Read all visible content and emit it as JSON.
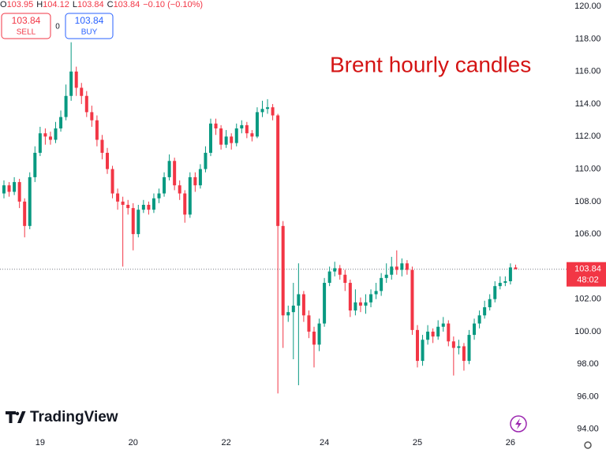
{
  "chart_data": {
    "type": "candlestick",
    "header": {
      "items": [
        {
          "label": "O",
          "value": "103.95"
        },
        {
          "label": "H",
          "value": "104.12"
        },
        {
          "label": "L",
          "value": "103.84"
        },
        {
          "label": "C",
          "value": "103.84"
        }
      ],
      "change": "−0.10 (−0.10%)"
    },
    "trade": {
      "sell_price": "103.84",
      "sell_label": "SELL",
      "spread": "0",
      "buy_price": "103.84",
      "buy_label": "BUY"
    },
    "annotation": "Brent hourly candles",
    "brand": "TradingView",
    "last_price_label": "103.84",
    "countdown": "48:02",
    "up_color": "#089981",
    "down_color": "#f23645",
    "categories": [
      null,
      null,
      null,
      null,
      null,
      null,
      null,
      "19",
      null,
      null,
      null,
      null,
      null,
      null,
      null,
      null,
      null,
      null,
      null,
      null,
      null,
      null,
      null,
      null,
      null,
      "20",
      null,
      null,
      null,
      null,
      null,
      null,
      null,
      null,
      null,
      null,
      null,
      null,
      null,
      null,
      null,
      null,
      null,
      "22",
      null,
      null,
      null,
      null,
      null,
      null,
      null,
      null,
      null,
      null,
      null,
      null,
      null,
      null,
      null,
      null,
      null,
      null,
      "24",
      null,
      null,
      null,
      null,
      null,
      null,
      null,
      null,
      null,
      null,
      null,
      null,
      null,
      null,
      null,
      null,
      null,
      "25",
      null,
      null,
      null,
      null,
      null,
      null,
      null,
      null,
      null,
      null,
      null,
      null,
      null,
      null,
      null,
      null,
      null,
      "26",
      null
    ],
    "open": [
      108.5,
      109,
      108.6,
      109.2,
      108,
      106.5,
      109.5,
      111,
      112.2,
      112,
      111.8,
      112.5,
      113.2,
      114.5,
      116,
      115,
      114.5,
      113.5,
      113,
      111.8,
      111,
      110,
      108.5,
      108,
      107.8,
      107.6,
      106,
      107.5,
      107.8,
      107.5,
      108.2,
      108.5,
      109.5,
      110.5,
      109,
      108.5,
      107.2,
      109.5,
      109,
      110,
      111,
      112.8,
      112.5,
      111.5,
      112,
      111.6,
      112.5,
      112.7,
      112.2,
      112,
      113.5,
      113.7,
      113.8,
      113.3,
      106.5,
      101,
      101.2,
      101.6,
      102.3,
      101,
      100,
      99.2,
      100.5,
      103,
      103.7,
      103.9,
      103.5,
      103,
      101.3,
      101.8,
      101.6,
      101.8,
      102.3,
      102.5,
      103.3,
      103.5,
      104,
      103.8,
      104.2,
      103.8,
      100.1,
      98.2,
      99.5,
      100,
      99.7,
      100.3,
      100.5,
      99.4,
      99,
      99.1,
      98.2,
      99.8,
      100.5,
      101,
      101.5,
      102,
      102.8,
      103,
      103.1,
      103.95
    ],
    "high": [
      109.3,
      109.2,
      109.5,
      109.4,
      108.2,
      109.8,
      111.4,
      112.6,
      112.5,
      112.3,
      112.9,
      113.6,
      115.2,
      117.8,
      116.3,
      115.3,
      114.8,
      113.9,
      113.3,
      112.1,
      111.3,
      110.2,
      108.8,
      108.3,
      108.1,
      107.9,
      107.8,
      108.1,
      108,
      108.5,
      108.8,
      109.8,
      110.9,
      110.7,
      109.3,
      108.7,
      109.8,
      109.8,
      110.3,
      111.4,
      113.1,
      113.1,
      112.7,
      112.4,
      112.2,
      112.8,
      113,
      112.9,
      112.4,
      113.8,
      114.2,
      114.3,
      114,
      113.4,
      106.8,
      101.6,
      103,
      104.2,
      102.5,
      101.3,
      100.3,
      100.8,
      103.3,
      104,
      104.3,
      104.1,
      103.8,
      103.2,
      102.6,
      102.1,
      102.3,
      102.6,
      103,
      103.6,
      104.2,
      104.6,
      105,
      104.5,
      104.4,
      104,
      100.4,
      99.8,
      100.4,
      100.2,
      100.7,
      100.9,
      100.7,
      99.7,
      99.5,
      99.3,
      100.1,
      100.8,
      101.3,
      101.9,
      102.3,
      103.1,
      103.4,
      103.4,
      104.2,
      104.12
    ],
    "low": [
      108.2,
      108.3,
      108.4,
      107.6,
      105.8,
      106.3,
      109.2,
      110.8,
      111.5,
      111.5,
      111.6,
      112.3,
      113,
      114.2,
      114.5,
      114,
      113.2,
      112.6,
      111.4,
      110.6,
      109.7,
      108.2,
      107.5,
      104,
      107.2,
      105,
      105.8,
      107.3,
      107.2,
      107.3,
      107.9,
      108.3,
      109.3,
      108.7,
      108.1,
      106.7,
      107,
      108.6,
      108.8,
      109.8,
      110.8,
      112.1,
      111.2,
      111.3,
      111.2,
      111.4,
      112.2,
      111.9,
      111.7,
      111.9,
      113.2,
      113.4,
      113,
      96.2,
      99,
      100.6,
      98.3,
      96.7,
      100.6,
      99.6,
      97.8,
      98.8,
      100.3,
      102.8,
      103.4,
      103.2,
      102.5,
      100.9,
      101,
      101.2,
      101.1,
      101.5,
      102,
      102.2,
      103,
      103.2,
      103.5,
      103.4,
      103.5,
      99.8,
      97.8,
      97.9,
      99.2,
      99.3,
      99.5,
      100,
      99.1,
      97.3,
      98.6,
      97.6,
      98,
      99.5,
      100.2,
      100.8,
      101.3,
      101.8,
      102.6,
      102.8,
      102.9,
      103.84
    ],
    "close": [
      109,
      108.6,
      109.2,
      108,
      106.5,
      109.5,
      111,
      112.2,
      112,
      111.8,
      112.5,
      113.2,
      114.5,
      116,
      115,
      114.5,
      113.5,
      113,
      111.8,
      111,
      110,
      108.5,
      108,
      107.8,
      107.6,
      106,
      107.5,
      107.8,
      107.5,
      108.2,
      108.5,
      109.5,
      110.5,
      109,
      108.5,
      107.2,
      109.5,
      109,
      110,
      111,
      112.8,
      112.5,
      111.5,
      112,
      111.6,
      112.5,
      112.7,
      112.2,
      112,
      113.5,
      113.7,
      113.8,
      113.3,
      106.5,
      101,
      101.2,
      101.6,
      102.3,
      101,
      100,
      99.2,
      100.5,
      103,
      103.7,
      103.9,
      103.5,
      103,
      101.3,
      101.8,
      101.6,
      101.8,
      102.3,
      102.5,
      103.3,
      103.5,
      104,
      103.8,
      104.2,
      103.8,
      100.1,
      98.2,
      99.5,
      100,
      99.7,
      100.3,
      100.5,
      99.4,
      99,
      99.1,
      98.2,
      99.8,
      100.5,
      101,
      101.5,
      102,
      102.8,
      103,
      103.1,
      103.95,
      103.84
    ],
    "ylim": [
      93.6,
      120.4
    ],
    "yticks": [
      {
        "value": 94,
        "label": "94.00"
      },
      {
        "value": 96,
        "label": "96.00"
      },
      {
        "value": 98,
        "label": "98.00"
      },
      {
        "value": 100,
        "label": "100.00"
      },
      {
        "value": 102,
        "label": "102.00"
      },
      {
        "value": 104,
        "label": "104.00"
      },
      {
        "value": 106,
        "label": "106.00"
      },
      {
        "value": 108,
        "label": "108.00"
      },
      {
        "value": 110,
        "label": "110.00"
      },
      {
        "value": 112,
        "label": "112.00"
      },
      {
        "value": 114,
        "label": "114.00"
      },
      {
        "value": 116,
        "label": "116.00"
      },
      {
        "value": 118,
        "label": "118.00"
      },
      {
        "value": 120,
        "label": "120.00"
      }
    ],
    "grid": false
  }
}
